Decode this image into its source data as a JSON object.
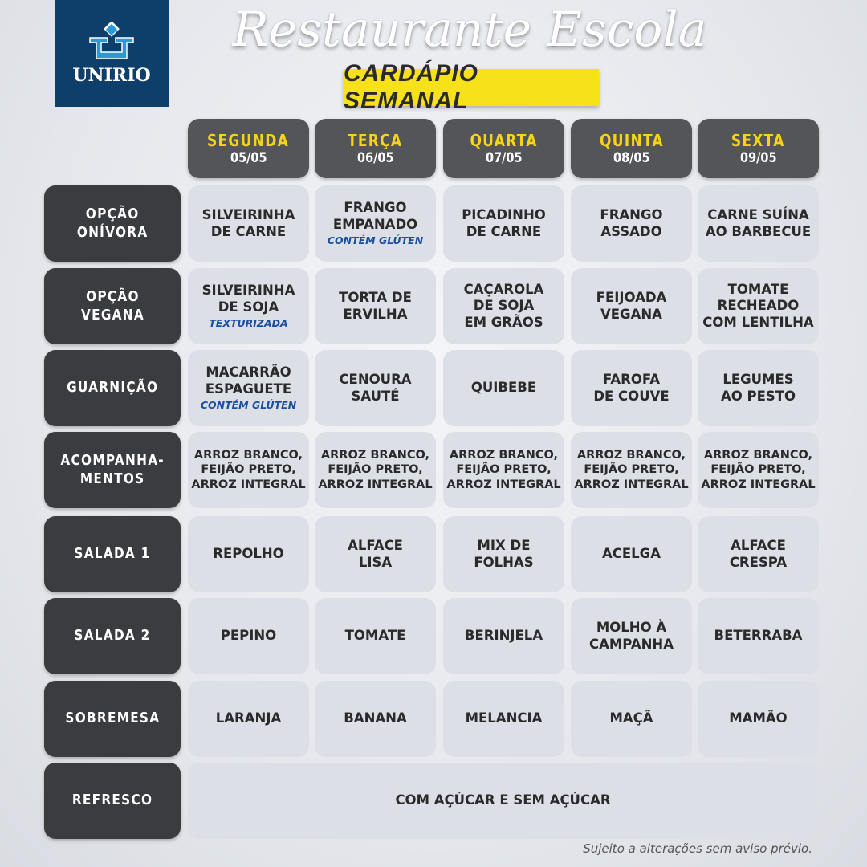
{
  "logo": {
    "text": "UNIRIO"
  },
  "title": "Restaurante Escola",
  "subtitle": "CARDÁPIO SEMANAL",
  "days": [
    {
      "name": "SEGUNDA",
      "date": "05/05"
    },
    {
      "name": "TERÇA",
      "date": "06/05"
    },
    {
      "name": "QUARTA",
      "date": "07/05"
    },
    {
      "name": "QUINTA",
      "date": "08/05"
    },
    {
      "name": "SEXTA",
      "date": "09/05"
    }
  ],
  "rows": [
    {
      "label": "OPÇÃO\nONÍVORA",
      "cells": [
        {
          "text": "SILVEIRINHA\nDE CARNE"
        },
        {
          "text": "FRANGO\nEMPANADO",
          "note": "CONTÉM GLÚTEN"
        },
        {
          "text": "PICADINHO\nDE CARNE"
        },
        {
          "text": "FRANGO\nASSADO"
        },
        {
          "text": "CARNE SUÍNA\nAO BARBECUE"
        }
      ]
    },
    {
      "label": "OPÇÃO\nVEGANA",
      "cells": [
        {
          "text": "SILVEIRINHA\nDE SOJA",
          "note": "TEXTURIZADA"
        },
        {
          "text": "TORTA DE\nERVILHA"
        },
        {
          "text": "CAÇAROLA\nDE SOJA\nEM GRÃOS"
        },
        {
          "text": "FEIJOADA\nVEGANA"
        },
        {
          "text": "TOMATE\nRECHEADO\nCOM LENTILHA"
        }
      ]
    },
    {
      "label": "GUARNIÇÃO",
      "cells": [
        {
          "text": "MACARRÃO\nESPAGUETE",
          "note": "CONTÉM GLÚTEN"
        },
        {
          "text": "CENOURA\nSAUTÉ"
        },
        {
          "text": "QUIBEBE"
        },
        {
          "text": "FAROFA\nDE COUVE"
        },
        {
          "text": "LEGUMES\nAO PESTO"
        }
      ]
    },
    {
      "label": "ACOMPANHA-\nMENTOS",
      "cells": [
        {
          "text": "ARROZ BRANCO,\nFEIJÃO PRETO,\nARROZ INTEGRAL"
        },
        {
          "text": "ARROZ BRANCO,\nFEIJÃO PRETO,\nARROZ INTEGRAL"
        },
        {
          "text": "ARROZ BRANCO,\nFEIJÃO PRETO,\nARROZ INTEGRAL"
        },
        {
          "text": "ARROZ BRANCO,\nFEIJÃO PRETO,\nARROZ INTEGRAL"
        },
        {
          "text": "ARROZ BRANCO,\nFEIJÃO PRETO,\nARROZ INTEGRAL"
        }
      ]
    },
    {
      "label": "SALADA 1",
      "cells": [
        {
          "text": "REPOLHO"
        },
        {
          "text": "ALFACE\nLISA"
        },
        {
          "text": "MIX DE\nFOLHAS"
        },
        {
          "text": "ACELGA"
        },
        {
          "text": "ALFACE\nCRESPA"
        }
      ]
    },
    {
      "label": "SALADA 2",
      "cells": [
        {
          "text": "PEPINO"
        },
        {
          "text": "TOMATE"
        },
        {
          "text": "BERINJELA"
        },
        {
          "text": "MOLHO À\nCAMPANHA"
        },
        {
          "text": "BETERRABA"
        }
      ]
    },
    {
      "label": "SOBREMESA",
      "cells": [
        {
          "text": "LARANJA"
        },
        {
          "text": "BANANA"
        },
        {
          "text": "MELANCIA"
        },
        {
          "text": "MAÇÃ"
        },
        {
          "text": "MAMÃO"
        }
      ]
    }
  ],
  "refresco": {
    "label": "REFRESCO",
    "text": "COM AÇÚCAR E SEM AÇÚCAR"
  },
  "footer": "Sujeito a alterações sem aviso prévio.",
  "colors": {
    "logo_bg": "#0e3f6b",
    "highlight": "#f7e11a",
    "day_text": "#f7d417",
    "label_bg": "#3b3c3f",
    "note": "#1a4fa0"
  }
}
